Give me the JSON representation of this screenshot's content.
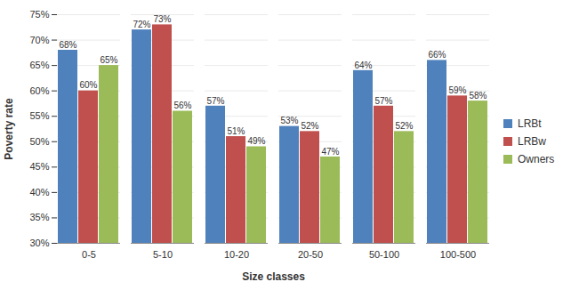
{
  "chart_data": {
    "type": "bar",
    "categories": [
      "0-5",
      "5-10",
      "10-20",
      "20-50",
      "50-100",
      "100-500"
    ],
    "series": [
      {
        "name": "LRBt",
        "color": "#4F81BD",
        "values": [
          68,
          72,
          57,
          53,
          64,
          66
        ],
        "value_labels": [
          "68%",
          "72%",
          "57%",
          "53%",
          "64%",
          "66%"
        ]
      },
      {
        "name": "LRBw",
        "color": "#C0504D",
        "values": [
          60,
          73,
          51,
          52,
          57,
          59
        ],
        "value_labels": [
          "60%",
          "73%",
          "51%",
          "52%",
          "57%",
          "59%"
        ]
      },
      {
        "name": "Owners",
        "color": "#9BBB59",
        "values": [
          65,
          56,
          49,
          47,
          52,
          58
        ],
        "value_labels": [
          "65%",
          "56%",
          "49%",
          "47%",
          "52%",
          "58%"
        ]
      }
    ],
    "xlabel": "Size classes",
    "ylabel": "Poverty rate",
    "ylim": [
      30,
      75
    ],
    "yticks": [
      {
        "value": 30,
        "label": "30%"
      },
      {
        "value": 35,
        "label": "35%"
      },
      {
        "value": 40,
        "label": "40%"
      },
      {
        "value": 45,
        "label": "45%"
      },
      {
        "value": 50,
        "label": "50%"
      },
      {
        "value": 55,
        "label": "55%"
      },
      {
        "value": 60,
        "label": "60%"
      },
      {
        "value": 65,
        "label": "65%"
      },
      {
        "value": 70,
        "label": "70%"
      },
      {
        "value": 75,
        "label": "75%"
      }
    ],
    "grid": true,
    "legend": "right",
    "data_labels": true
  }
}
